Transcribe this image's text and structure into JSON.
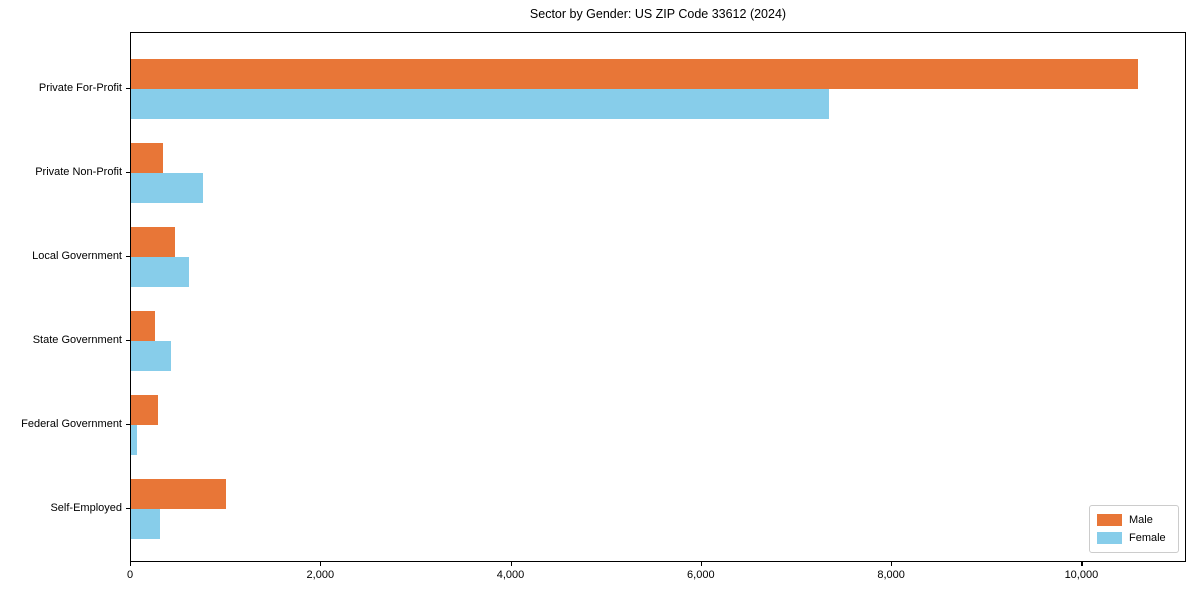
{
  "chart_data": {
    "type": "bar",
    "orientation": "horizontal",
    "title": "Sector by Gender: US ZIP Code 33612 (2024)",
    "categories": [
      "Private For-Profit",
      "Private Non-Profit",
      "Local Government",
      "State Government",
      "Federal Government",
      "Self-Employed"
    ],
    "series": [
      {
        "name": "Male",
        "color": "#e87637",
        "values": [
          10580,
          340,
          460,
          250,
          280,
          1000
        ]
      },
      {
        "name": "Female",
        "color": "#87cdea",
        "values": [
          7340,
          760,
          610,
          420,
          60,
          300
        ]
      }
    ],
    "xlabel": "",
    "ylabel": "",
    "xlim": [
      0,
      11100
    ],
    "xticks": [
      0,
      2000,
      4000,
      6000,
      8000,
      10000
    ],
    "xtick_labels": [
      "0",
      "2,000",
      "4,000",
      "6,000",
      "8,000",
      "10,000"
    ],
    "grid": false,
    "legend_position": "lower right",
    "legend_labels": [
      "Male",
      "Female"
    ]
  }
}
